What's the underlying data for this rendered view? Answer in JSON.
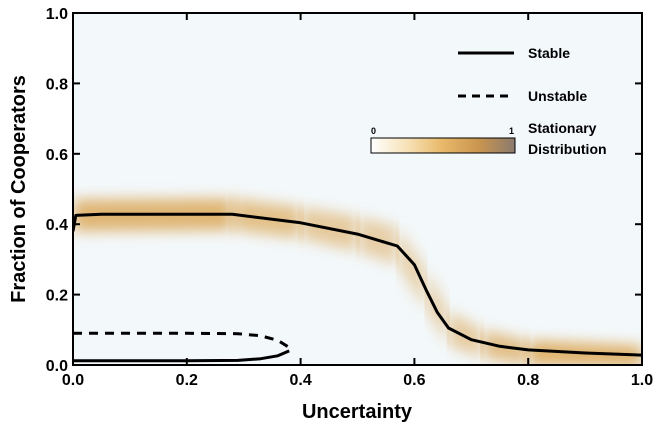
{
  "chart_data": {
    "type": "line",
    "xlabel": "Uncertainty",
    "ylabel": "Fraction of Cooperators",
    "xlim": [
      0,
      1
    ],
    "ylim": [
      0,
      1
    ],
    "xticks": [
      "0.0",
      "0.2",
      "0.4",
      "0.6",
      "0.8",
      "1.0"
    ],
    "yticks": [
      "0.0",
      "0.2",
      "0.4",
      "0.6",
      "0.8",
      "1.0"
    ],
    "grid": false,
    "legend_placement": "top-right",
    "colorbar": {
      "label_line1": "Stationary",
      "label_line2": "Distribution",
      "min_label": "0",
      "max_label": "1",
      "colors": [
        "#ffffff",
        "#f7e2b8",
        "#e8b868",
        "#c99550",
        "#8a7a6e"
      ]
    },
    "heatmap_color": "#d9a048",
    "background_color": "#f3f8fb",
    "series": [
      {
        "name": "Stable",
        "style": "solid",
        "points": [
          [
            0.0,
            0.38
          ],
          [
            0.005,
            0.425
          ],
          [
            0.05,
            0.428
          ],
          [
            0.28,
            0.428
          ],
          [
            0.4,
            0.404
          ],
          [
            0.5,
            0.372
          ],
          [
            0.57,
            0.338
          ],
          [
            0.6,
            0.285
          ],
          [
            0.62,
            0.215
          ],
          [
            0.64,
            0.15
          ],
          [
            0.66,
            0.105
          ],
          [
            0.7,
            0.072
          ],
          [
            0.75,
            0.053
          ],
          [
            0.8,
            0.043
          ],
          [
            0.9,
            0.034
          ],
          [
            1.0,
            0.028
          ]
        ]
      },
      {
        "name": "Stable",
        "style": "solid",
        "points": [
          [
            0.0,
            0.012
          ],
          [
            0.1,
            0.012
          ],
          [
            0.2,
            0.012
          ],
          [
            0.29,
            0.013
          ],
          [
            0.33,
            0.018
          ],
          [
            0.36,
            0.026
          ],
          [
            0.38,
            0.04
          ]
        ]
      },
      {
        "name": "Unstable",
        "style": "dashed",
        "points": [
          [
            0.0,
            0.09
          ],
          [
            0.1,
            0.09
          ],
          [
            0.2,
            0.09
          ],
          [
            0.29,
            0.089
          ],
          [
            0.33,
            0.083
          ],
          [
            0.36,
            0.07
          ],
          [
            0.38,
            0.05
          ]
        ]
      }
    ],
    "density_band": [
      {
        "x": 0.0,
        "center": 0.425,
        "width": 0.045,
        "intensity": 0.85
      },
      {
        "x": 0.28,
        "center": 0.428,
        "width": 0.045,
        "intensity": 0.7
      },
      {
        "x": 0.4,
        "center": 0.404,
        "width": 0.045,
        "intensity": 0.55
      },
      {
        "x": 0.5,
        "center": 0.372,
        "width": 0.05,
        "intensity": 0.5
      },
      {
        "x": 0.57,
        "center": 0.338,
        "width": 0.055,
        "intensity": 0.45
      },
      {
        "x": 0.62,
        "center": 0.215,
        "width": 0.06,
        "intensity": 0.4
      },
      {
        "x": 0.66,
        "center": 0.105,
        "width": 0.05,
        "intensity": 0.45
      },
      {
        "x": 0.72,
        "center": 0.06,
        "width": 0.04,
        "intensity": 0.55
      },
      {
        "x": 0.8,
        "center": 0.035,
        "width": 0.035,
        "intensity": 0.75
      },
      {
        "x": 1.0,
        "center": 0.025,
        "width": 0.03,
        "intensity": 0.85
      }
    ]
  }
}
